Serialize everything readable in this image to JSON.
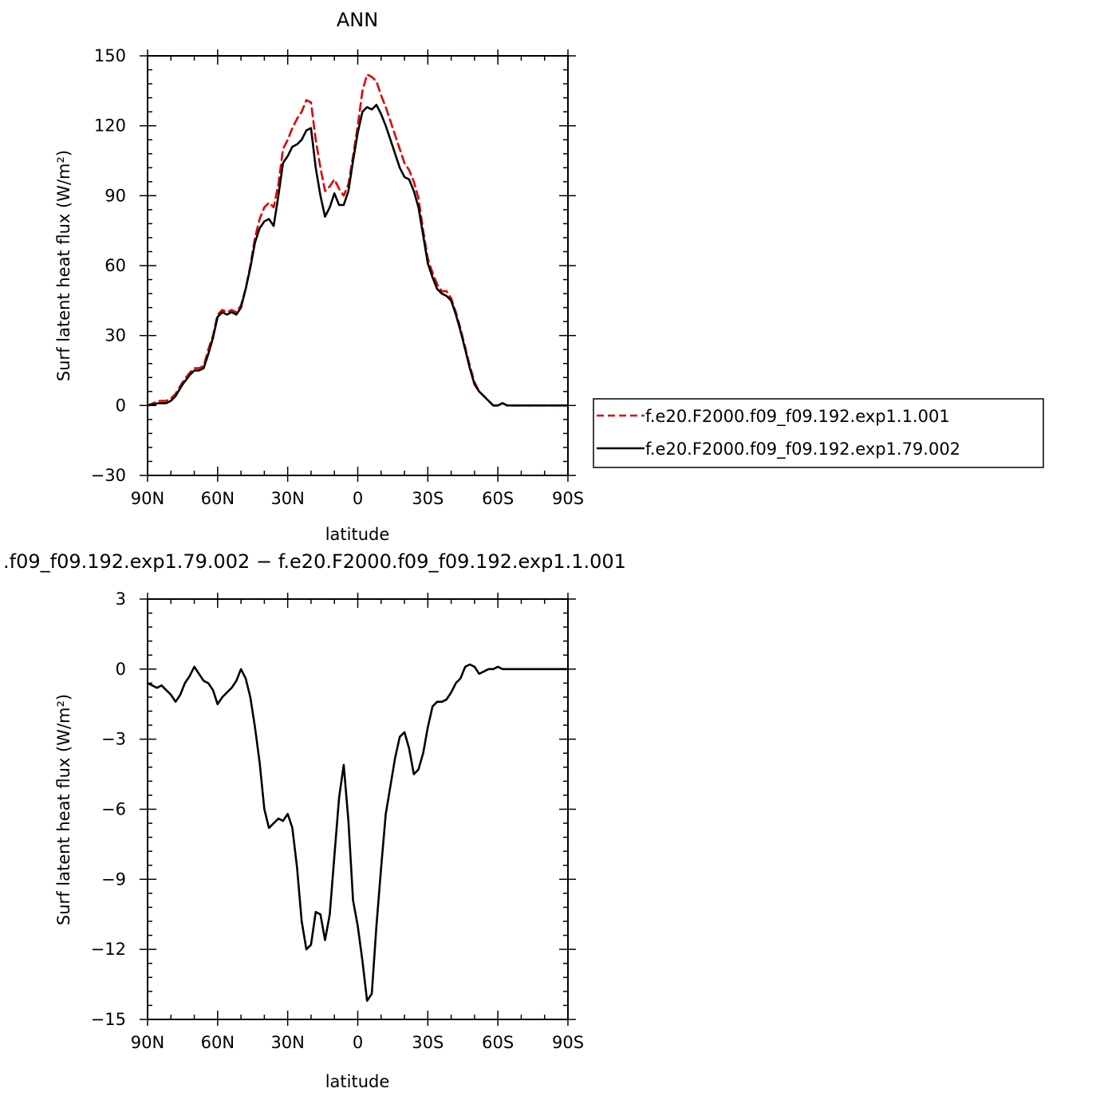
{
  "chart_data": [
    {
      "type": "line",
      "title": "ANN",
      "xlabel": "latitude",
      "ylabel": "Surf latent heat flux (W/m²)",
      "xlim": [
        90,
        -90
      ],
      "ylim": [
        -30,
        150
      ],
      "x_tick_labels": [
        "90N",
        "60N",
        "30N",
        "0",
        "30S",
        "60S",
        "90S"
      ],
      "x_tick_values": [
        90,
        60,
        30,
        0,
        -30,
        -60,
        -90
      ],
      "y_tick_labels": [
        "−30",
        "0",
        "30",
        "60",
        "90",
        "120",
        "150"
      ],
      "y_tick_values": [
        -30,
        0,
        30,
        60,
        90,
        120,
        150
      ],
      "legend": {
        "placement": "right"
      },
      "series": [
        {
          "name": "f.e20.F2000.f09_f09.192.exp1.1.001",
          "color": "#e00000",
          "dash": "dashed",
          "x": [
            90,
            85,
            82,
            80,
            78,
            75,
            72,
            70,
            68,
            66,
            64,
            62,
            60,
            58,
            56,
            54,
            52,
            50,
            48,
            46,
            44,
            42,
            40,
            38,
            36,
            34,
            32,
            30,
            28,
            26,
            24,
            22,
            20,
            18,
            16,
            14,
            12,
            10,
            8,
            6,
            4,
            2,
            0,
            -2,
            -4,
            -6,
            -8,
            -10,
            -12,
            -14,
            -16,
            -18,
            -20,
            -22,
            -24,
            -26,
            -28,
            -30,
            -32,
            -34,
            -36,
            -38,
            -40,
            -42,
            -44,
            -46,
            -48,
            -50,
            -52,
            -54,
            -56,
            -58,
            -60,
            -62,
            -64,
            -66,
            -68,
            -70,
            -72,
            -74,
            -76,
            -78,
            -80,
            -82,
            -84,
            -86,
            -88,
            -90
          ],
          "y": [
            0,
            2,
            2,
            3,
            5,
            10,
            14,
            16,
            16,
            17,
            24,
            30,
            39,
            41,
            40,
            41,
            40,
            43,
            50,
            60,
            72,
            80,
            85,
            87,
            85,
            95,
            110,
            114,
            119,
            123,
            126,
            131,
            130,
            114,
            102,
            92,
            94,
            97,
            93,
            90,
            95,
            107,
            120,
            135,
            142,
            141,
            139,
            133,
            128,
            122,
            116,
            110,
            104,
            101,
            96,
            89,
            75,
            63,
            57,
            52,
            49,
            49,
            46,
            40,
            33,
            25,
            17,
            10,
            6,
            4,
            2,
            0,
            0,
            1,
            0,
            0,
            0,
            0,
            0,
            0,
            0,
            0,
            0,
            0,
            0,
            0,
            0,
            0
          ]
        },
        {
          "name": "f.e20.F2000.f09_f09.192.exp1.79.002",
          "color": "#000000",
          "dash": "solid",
          "x": [
            90,
            85,
            82,
            80,
            78,
            75,
            72,
            70,
            68,
            66,
            64,
            62,
            60,
            58,
            56,
            54,
            52,
            50,
            48,
            46,
            44,
            42,
            40,
            38,
            36,
            34,
            32,
            30,
            28,
            26,
            24,
            22,
            20,
            18,
            16,
            14,
            12,
            10,
            8,
            6,
            4,
            2,
            0,
            -2,
            -4,
            -6,
            -8,
            -10,
            -12,
            -14,
            -16,
            -18,
            -20,
            -22,
            -24,
            -26,
            -28,
            -30,
            -32,
            -34,
            -36,
            -38,
            -40,
            -42,
            -44,
            -46,
            -48,
            -50,
            -52,
            -54,
            -56,
            -58,
            -60,
            -62,
            -64,
            -66,
            -68,
            -70,
            -72,
            -74,
            -76,
            -78,
            -80,
            -82,
            -84,
            -86,
            -88,
            -90
          ],
          "y": [
            0,
            1,
            1,
            2,
            4,
            9,
            13,
            15,
            15,
            16,
            22,
            29,
            38,
            40,
            39,
            40,
            39,
            42,
            50,
            59,
            70,
            76,
            79,
            80,
            77,
            90,
            104,
            107,
            111,
            112,
            114,
            118,
            119,
            102,
            90,
            81,
            85,
            91,
            86,
            86,
            92,
            105,
            117,
            126,
            128,
            127,
            129,
            125,
            120,
            114,
            108,
            102,
            98,
            97,
            92,
            85,
            73,
            61,
            55,
            50,
            48,
            47,
            45,
            39,
            32,
            24,
            16,
            9,
            6,
            4,
            2,
            0,
            0,
            1,
            0,
            0,
            0,
            0,
            0,
            0,
            0,
            0,
            0,
            0,
            0,
            0,
            0,
            0
          ]
        }
      ]
    },
    {
      "type": "line",
      "title": ".f09_f09.192.exp1.79.002 − f.e20.F2000.f09_f09.192.exp1.1.001",
      "xlabel": "latitude",
      "ylabel": "Surf latent heat flux (W/m²)",
      "xlim": [
        90,
        -90
      ],
      "ylim": [
        -15,
        3
      ],
      "x_tick_labels": [
        "90N",
        "60N",
        "30N",
        "0",
        "30S",
        "60S",
        "90S"
      ],
      "x_tick_values": [
        90,
        60,
        30,
        0,
        -30,
        -60,
        -90
      ],
      "y_tick_labels": [
        "−15",
        "−12",
        "−9",
        "−6",
        "−3",
        "0",
        "3"
      ],
      "y_tick_values": [
        -15,
        -12,
        -9,
        -6,
        -3,
        0,
        3
      ],
      "series": [
        {
          "color": "#000000",
          "dash": "solid",
          "x": [
            90,
            88,
            86,
            84,
            82,
            80,
            78,
            76,
            74,
            72,
            70,
            68,
            66,
            64,
            62,
            60,
            58,
            56,
            54,
            52,
            50,
            48,
            46,
            44,
            42,
            40,
            38,
            36,
            34,
            32,
            30,
            28,
            26,
            24,
            22,
            20,
            18,
            16,
            14,
            12,
            10,
            8,
            6,
            4,
            2,
            0,
            -2,
            -4,
            -6,
            -8,
            -10,
            -12,
            -14,
            -16,
            -18,
            -20,
            -22,
            -24,
            -26,
            -28,
            -30,
            -32,
            -34,
            -36,
            -38,
            -40,
            -42,
            -44,
            -46,
            -48,
            -50,
            -52,
            -54,
            -56,
            -58,
            -60,
            -62,
            -64,
            -66,
            -68,
            -70,
            -72,
            -74,
            -76,
            -78,
            -80,
            -82,
            -84,
            -86,
            -88,
            -90
          ],
          "y": [
            -0.6,
            -0.7,
            -0.8,
            -0.7,
            -0.9,
            -1.1,
            -1.4,
            -1.1,
            -0.6,
            -0.3,
            0.1,
            -0.2,
            -0.5,
            -0.6,
            -0.9,
            -1.5,
            -1.2,
            -1.0,
            -0.8,
            -0.5,
            0.0,
            -0.4,
            -1.2,
            -2.5,
            -4.0,
            -6.0,
            -6.8,
            -6.6,
            -6.4,
            -6.5,
            -6.2,
            -6.8,
            -8.5,
            -10.8,
            -12.0,
            -11.8,
            -10.4,
            -10.5,
            -11.6,
            -10.5,
            -8.0,
            -5.5,
            -4.1,
            -6.5,
            -9.9,
            -11.0,
            -12.5,
            -14.2,
            -13.9,
            -11.0,
            -8.5,
            -6.2,
            -5.0,
            -3.8,
            -2.9,
            -2.7,
            -3.4,
            -4.5,
            -4.3,
            -3.6,
            -2.5,
            -1.6,
            -1.4,
            -1.4,
            -1.3,
            -1.0,
            -0.6,
            -0.4,
            0.1,
            0.2,
            0.1,
            -0.2,
            -0.1,
            0.0,
            0.0,
            0.1,
            0.0,
            0.0,
            0.0,
            0.0,
            0.0,
            0.0,
            0.0,
            0.0,
            0.0,
            0.0,
            0.0,
            0.0,
            0.0,
            0.0,
            0.0
          ]
        }
      ]
    }
  ]
}
